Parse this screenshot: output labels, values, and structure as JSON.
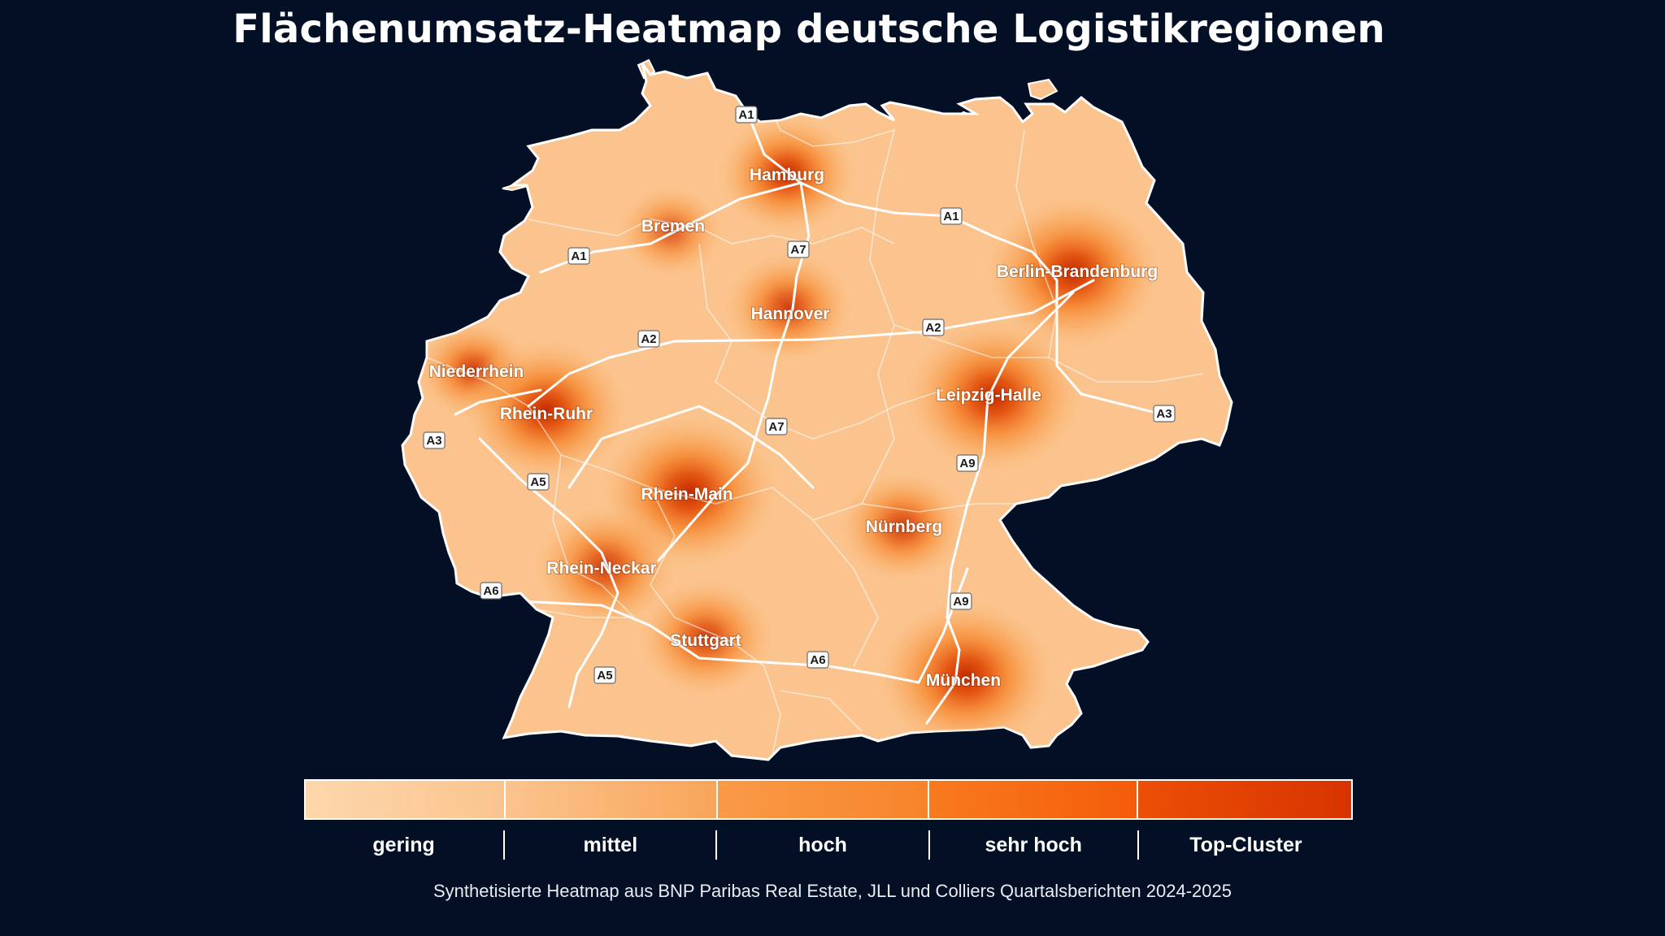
{
  "title": "Flächenumsatz-Heatmap deutsche Logistikregionen",
  "source_note": "Synthetisierte Heatmap aus BNP Paribas Real Estate, JLL und Colliers Quartalsberichten 2024-2025",
  "colors": {
    "background": "#030f24",
    "base_land": "#fbc48e",
    "hot_core": "#c42a00",
    "roads": "#ffffff"
  },
  "legend": {
    "classes": [
      {
        "label": "gering",
        "from": "#fdd7ac",
        "to": "#fbc48e"
      },
      {
        "label": "mittel",
        "from": "#fbc48e",
        "to": "#f9a55a"
      },
      {
        "label": "hoch",
        "from": "#f99a48",
        "to": "#f7842a"
      },
      {
        "label": "sehr hoch",
        "from": "#f87a1e",
        "to": "#f45c0a"
      },
      {
        "label": "Top-Cluster",
        "from": "#ec4f06",
        "to": "#d83300"
      }
    ]
  },
  "regions": [
    {
      "name": "Hamburg",
      "intensity": "Top-Cluster"
    },
    {
      "name": "Bremen",
      "intensity": "hoch"
    },
    {
      "name": "Hannover",
      "intensity": "sehr hoch"
    },
    {
      "name": "Berlin-Brandenburg",
      "intensity": "Top-Cluster"
    },
    {
      "name": "Niederrhein",
      "intensity": "sehr hoch"
    },
    {
      "name": "Rhein-Ruhr",
      "intensity": "Top-Cluster"
    },
    {
      "name": "Leipzig-Halle",
      "intensity": "Top-Cluster"
    },
    {
      "name": "Rhein-Main",
      "intensity": "Top-Cluster"
    },
    {
      "name": "Nürnberg",
      "intensity": "sehr hoch"
    },
    {
      "name": "Rhein-Neckar",
      "intensity": "sehr hoch"
    },
    {
      "name": "Stuttgart",
      "intensity": "sehr hoch"
    },
    {
      "name": "München",
      "intensity": "Top-Cluster"
    }
  ],
  "motorways": [
    "A1",
    "A1",
    "A1",
    "A7",
    "A7",
    "A2",
    "A2",
    "A3",
    "A3",
    "A9",
    "A9",
    "A5",
    "A5",
    "A6",
    "A6"
  ]
}
